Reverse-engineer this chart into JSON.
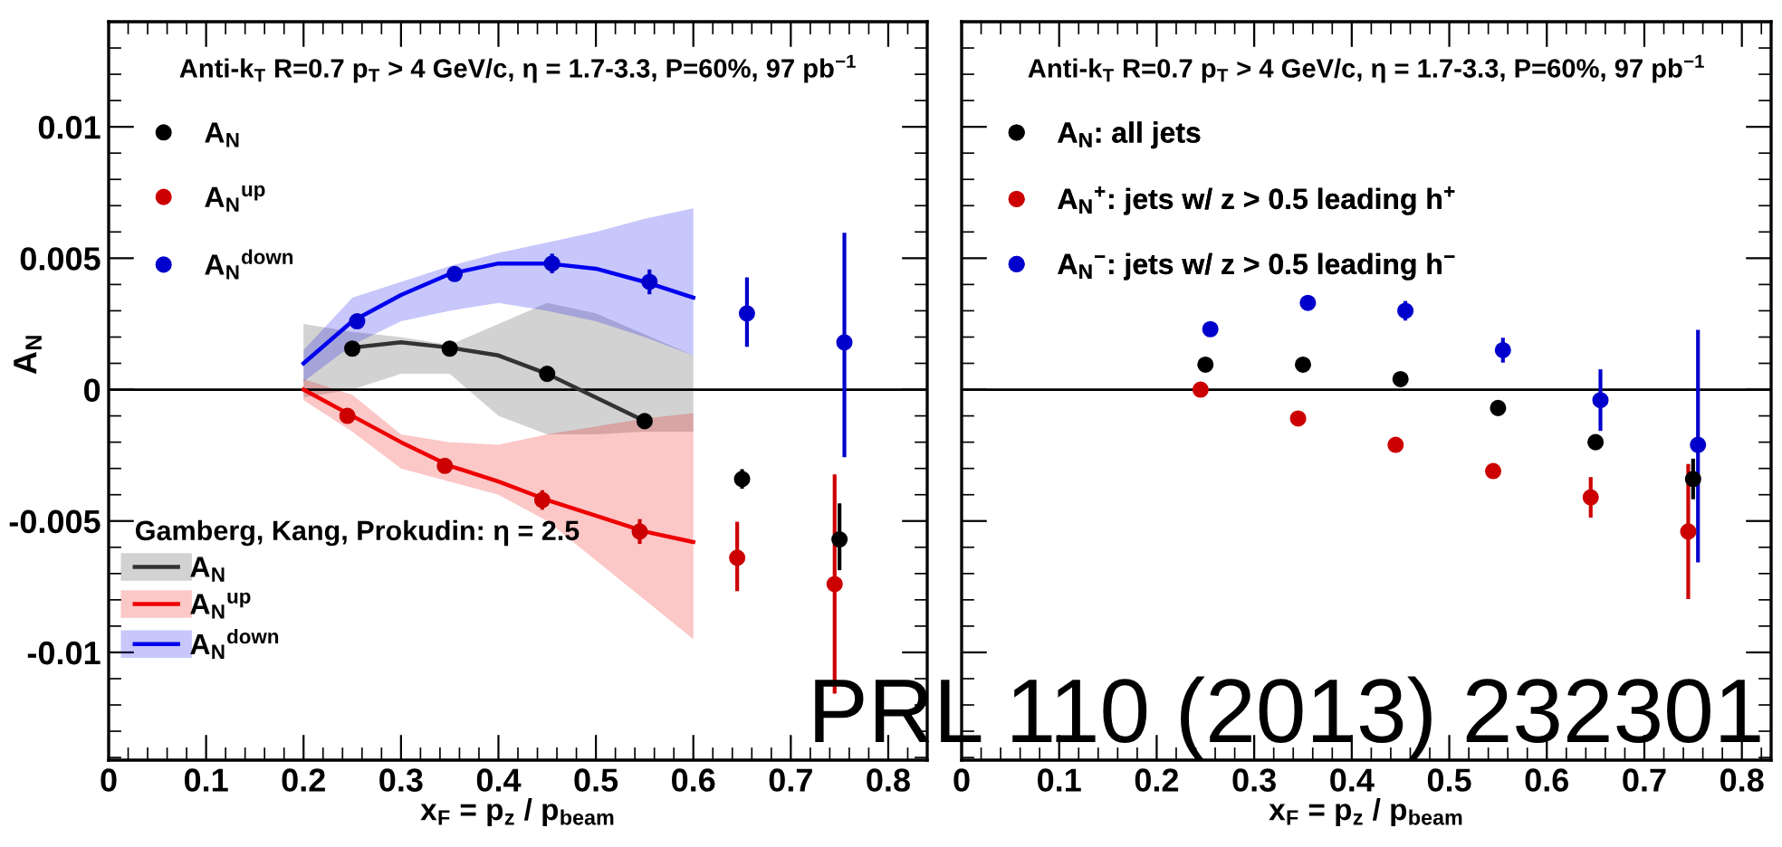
{
  "chart_data": [
    {
      "type": "scatter",
      "title": "Anti-k$_{T}$ R=0.7 p$_{T}$ > 4 GeV/c, η = 1.7-3.3, P=60%, 97 pb$^{−1}$",
      "xlabel": "x$_{F}$ = p$_{z}$ / p$_{beam}$",
      "ylabel": "A$_{N}$",
      "legend_title": "Gamberg, Kang, Prokudin: η = 2.5",
      "xlim": [
        0,
        0.84
      ],
      "xticks": [
        0,
        0.1,
        0.2,
        0.3,
        0.4,
        0.5,
        0.6,
        0.7,
        0.8
      ],
      "ylim": [
        -0.0141,
        0.014
      ],
      "yticks": [
        -0.01,
        -0.005,
        0,
        0.005,
        0.01
      ],
      "grid": false,
      "legend": "top left",
      "ref_lines": [
        {
          "axis": "y",
          "value": 0,
          "color": "#000000"
        }
      ],
      "series": [
        {
          "type": "line",
          "name": "A$_{N}$",
          "color": "#333333",
          "x": [
            0.2,
            0.25,
            0.3,
            0.35,
            0.4,
            0.45,
            0.5,
            0.55,
            0.6
          ],
          "values": [
            null,
            0.0016,
            0.0018,
            0.0016,
            0.0013,
            0.0006,
            -0.0003,
            -0.0012,
            null
          ],
          "lower": [
            -0.0003,
            0.0,
            0.0006,
            0.0006,
            -0.001,
            -0.0017,
            -0.0017,
            -0.0016,
            -0.0016
          ],
          "upper": [
            0.0025,
            0.0022,
            0.002,
            0.0017,
            0.0025,
            0.0033,
            0.0029,
            0.0021,
            0.0013
          ]
        },
        {
          "type": "line",
          "name": "A$_{N}$$^{up}$",
          "color": "#ee0000",
          "x": [
            0.2,
            0.25,
            0.3,
            0.35,
            0.4,
            0.45,
            0.5,
            0.55,
            0.6
          ],
          "values": [
            0.0,
            -0.001,
            -0.002,
            -0.0029,
            -0.0035,
            -0.0042,
            -0.0048,
            -0.0054,
            -0.0058
          ],
          "lower": [
            -0.0004,
            -0.0016,
            -0.003,
            -0.0035,
            -0.004,
            -0.005,
            -0.0065,
            -0.008,
            -0.0095
          ],
          "upper": [
            0.0004,
            -0.0002,
            -0.0017,
            -0.002,
            -0.0021,
            -0.0017,
            -0.0014,
            -0.0011,
            -0.0009
          ]
        },
        {
          "type": "line",
          "name": "A$_{N}$$^{down}$",
          "color": "#0000ee",
          "x": [
            0.2,
            0.25,
            0.3,
            0.35,
            0.4,
            0.45,
            0.5,
            0.55,
            0.6
          ],
          "values": [
            0.001,
            0.0026,
            0.0036,
            0.0044,
            0.0048,
            0.0048,
            0.0046,
            0.0041,
            0.0035
          ],
          "lower": [
            0.0003,
            0.0017,
            0.0026,
            0.003,
            0.0033,
            0.003,
            0.0026,
            0.002,
            0.0013
          ],
          "upper": [
            0.0015,
            0.0035,
            0.0041,
            0.0047,
            0.0052,
            0.0056,
            0.006,
            0.0065,
            0.0069
          ]
        },
        {
          "name": "A$_{N}$",
          "color": "#000000",
          "marker": "circle",
          "x": [
            0.25,
            0.35,
            0.45,
            0.55,
            0.65,
            0.75
          ],
          "values": [
            0.00156,
            0.00156,
            0.0006,
            -0.0012,
            -0.0034,
            -0.0057
          ],
          "errors": [
            null,
            null,
            null,
            null,
            0.0003,
            [
              -0.0068,
              -0.0044
            ]
          ]
        },
        {
          "name": "A$_{N}$$^{up}$",
          "color": "#cc0000",
          "marker": "circle",
          "x": [
            0.245,
            0.345,
            0.445,
            0.545,
            0.645,
            0.745
          ],
          "values": [
            -0.001,
            -0.0029,
            -0.0042,
            -0.0054,
            -0.0064,
            -0.0074
          ],
          "errors": [
            null,
            null,
            0.0003,
            0.0004,
            [
              -0.0076,
              -0.0051
            ],
            [
              -0.0115,
              -0.0033
            ]
          ]
        },
        {
          "name": "A$_{N}$$^{down}$",
          "color": "#0000cc",
          "marker": "circle",
          "x": [
            0.255,
            0.355,
            0.455,
            0.555,
            0.655,
            0.755
          ],
          "values": [
            0.0026,
            0.0044,
            0.0048,
            0.0041,
            0.0029,
            0.0018
          ],
          "errors": [
            null,
            null,
            0.0003,
            0.0004,
            [
              0.0017,
              0.0042
            ],
            [
              -0.0025,
              0.0059
            ]
          ]
        }
      ]
    },
    {
      "type": "scatter",
      "title": "Anti-k$_{T}$ R=0.7 p$_{T}$ > 4 GeV/c, η = 1.7-3.3, P=60%, 97 pb$^{−1}$",
      "xlabel": "x$_{F}$ = p$_{z}$ / p$_{beam}$",
      "xlim": [
        0,
        0.83
      ],
      "xticks": [
        0,
        0.1,
        0.2,
        0.3,
        0.4,
        0.5,
        0.6,
        0.7,
        0.8
      ],
      "ylim": [
        -0.0141,
        0.014
      ],
      "yticks": [
        -0.01,
        -0.005,
        0,
        0.005,
        0.01
      ],
      "tick_labels": "x",
      "grid": false,
      "legend": "top left",
      "ref_lines": [
        {
          "axis": "y",
          "value": 0,
          "color": "#000000"
        }
      ],
      "annotations": [
        "PRL 110 (2013) 232301"
      ],
      "series": [
        {
          "name": "A$_{N}$: all jets",
          "color": "#000000",
          "marker": "circle",
          "x": [
            0.25,
            0.35,
            0.45,
            0.55,
            0.65,
            0.75
          ],
          "values": [
            0.00095,
            0.00095,
            0.0004,
            -0.0007,
            -0.002,
            -0.0034
          ],
          "errors": [
            null,
            null,
            null,
            null,
            null,
            0.0007
          ]
        },
        {
          "name": "A$_{N}$$^{+}$: jets w/ z > 0.5 leading h$^{+}$",
          "color": "#cc0000",
          "marker": "circle",
          "x": [
            0.245,
            0.345,
            0.445,
            0.545,
            0.645,
            0.745
          ],
          "values": [
            0.0,
            -0.0011,
            -0.0021,
            -0.0031,
            -0.0041,
            -0.0054
          ],
          "errors": [
            null,
            null,
            null,
            null,
            0.0007,
            [
              -0.0079,
              -0.0029
            ]
          ]
        },
        {
          "name": "A$_{N}$$^{−}$: jets w/ z > 0.5 leading h$^{−}$",
          "color": "#0000cc",
          "marker": "circle",
          "x": [
            0.255,
            0.355,
            0.455,
            0.555,
            0.655,
            0.755
          ],
          "values": [
            0.0023,
            0.0033,
            0.003,
            0.0015,
            -0.0004,
            -0.0021
          ],
          "errors": [
            null,
            null,
            0.0003,
            0.0004,
            [
              -0.0015,
              0.0007
            ],
            [
              -0.0065,
              0.0022
            ]
          ]
        }
      ]
    }
  ]
}
